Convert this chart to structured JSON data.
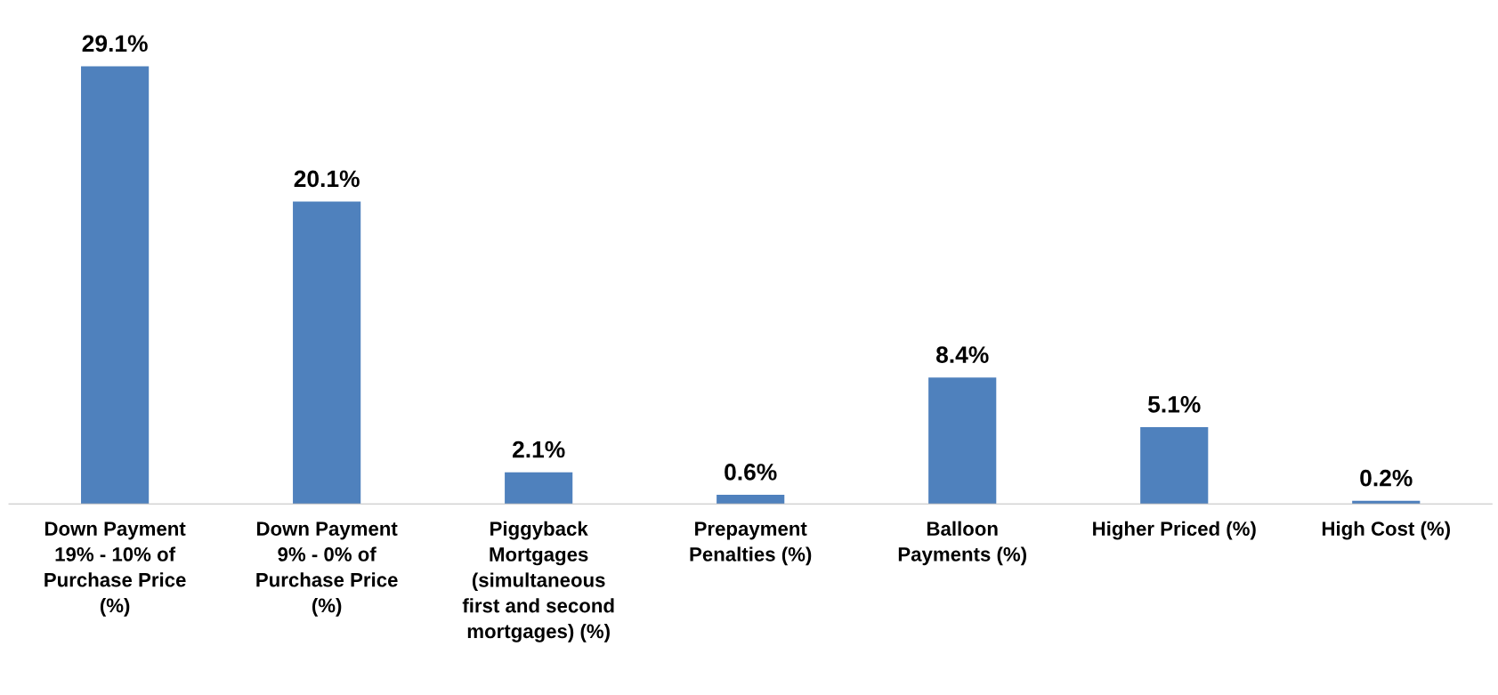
{
  "chart_data": {
    "type": "bar",
    "categories": [
      "Down Payment\n19% - 10% of\nPurchase Price\n(%)",
      "Down Payment\n9% - 0% of\nPurchase Price\n(%)",
      "Piggyback\nMortgages\n(simultaneous\nfirst and second\nmortgages) (%)",
      "Prepayment\nPenalties (%)",
      "Balloon\nPayments (%)",
      "Higher Priced (%)",
      "High Cost (%)"
    ],
    "values": [
      29.1,
      20.1,
      2.1,
      0.6,
      8.4,
      5.1,
      0.2
    ],
    "value_labels": [
      "29.1%",
      "20.1%",
      "2.1%",
      "0.6%",
      "8.4%",
      "5.1%",
      "0.2%"
    ],
    "color": "#4f81bd",
    "grid": false,
    "legend": false
  }
}
